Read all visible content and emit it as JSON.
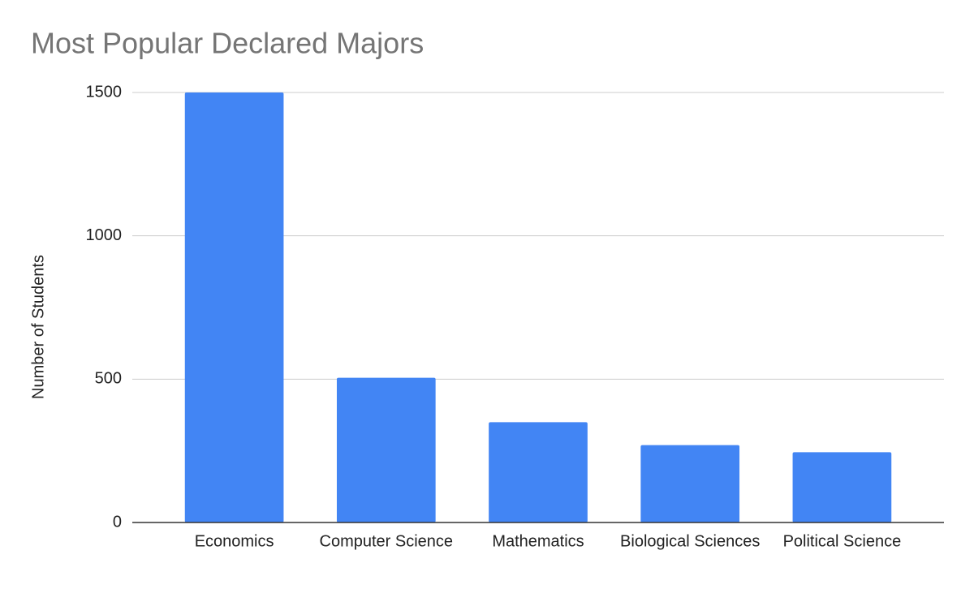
{
  "chart_data": {
    "type": "bar",
    "title": "Most Popular Declared Majors",
    "y_axis_label": "Number of Students",
    "categories": [
      "Economics",
      "Computer Science",
      "Mathematics",
      "Biological Sciences",
      "Political Science"
    ],
    "values": [
      1500,
      505,
      350,
      270,
      245
    ],
    "color": "#4285f4",
    "ylim": [
      0,
      1500
    ],
    "yticks": [
      0,
      500,
      1000,
      1500
    ],
    "grid": true
  }
}
